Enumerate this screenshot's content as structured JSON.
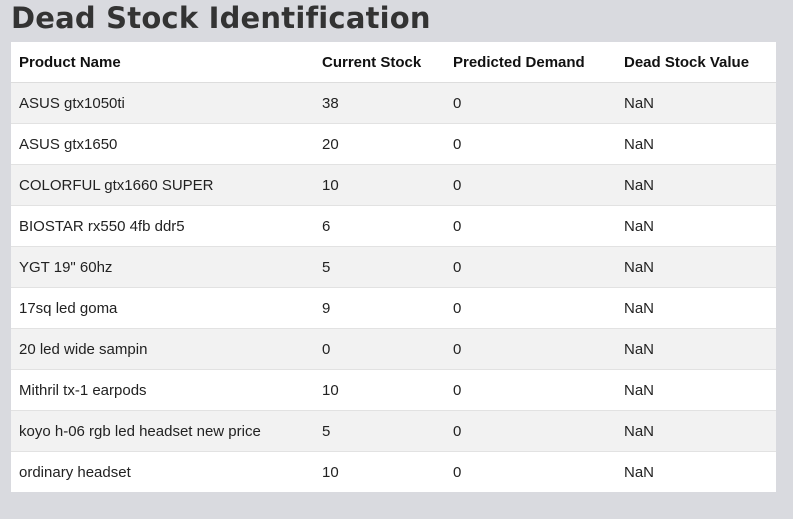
{
  "page": {
    "title": "Dead Stock Identification"
  },
  "table": {
    "columns": [
      "Product Name",
      "Current Stock",
      "Predicted Demand",
      "Dead Stock Value"
    ],
    "rows": [
      [
        "ASUS gtx1050ti",
        "38",
        "0",
        "NaN"
      ],
      [
        "ASUS gtx1650",
        "20",
        "0",
        "NaN"
      ],
      [
        "COLORFUL gtx1660 SUPER",
        "10",
        "0",
        "NaN"
      ],
      [
        "BIOSTAR rx550 4fb ddr5",
        "6",
        "0",
        "NaN"
      ],
      [
        "YGT 19\" 60hz",
        "5",
        "0",
        "NaN"
      ],
      [
        "17sq led goma",
        "9",
        "0",
        "NaN"
      ],
      [
        "20 led wide sampin",
        "0",
        "0",
        "NaN"
      ],
      [
        "Mithril tx-1 earpods",
        "10",
        "0",
        "NaN"
      ],
      [
        "koyo h-06 rgb led headset new price",
        "5",
        "0",
        "NaN"
      ],
      [
        "ordinary headset",
        "10",
        "0",
        "NaN"
      ]
    ]
  },
  "colors": {
    "background": "#d9dadf",
    "table_background": "#ffffff",
    "row_stripe": "#f2f2f2",
    "title_text": "#333333"
  }
}
